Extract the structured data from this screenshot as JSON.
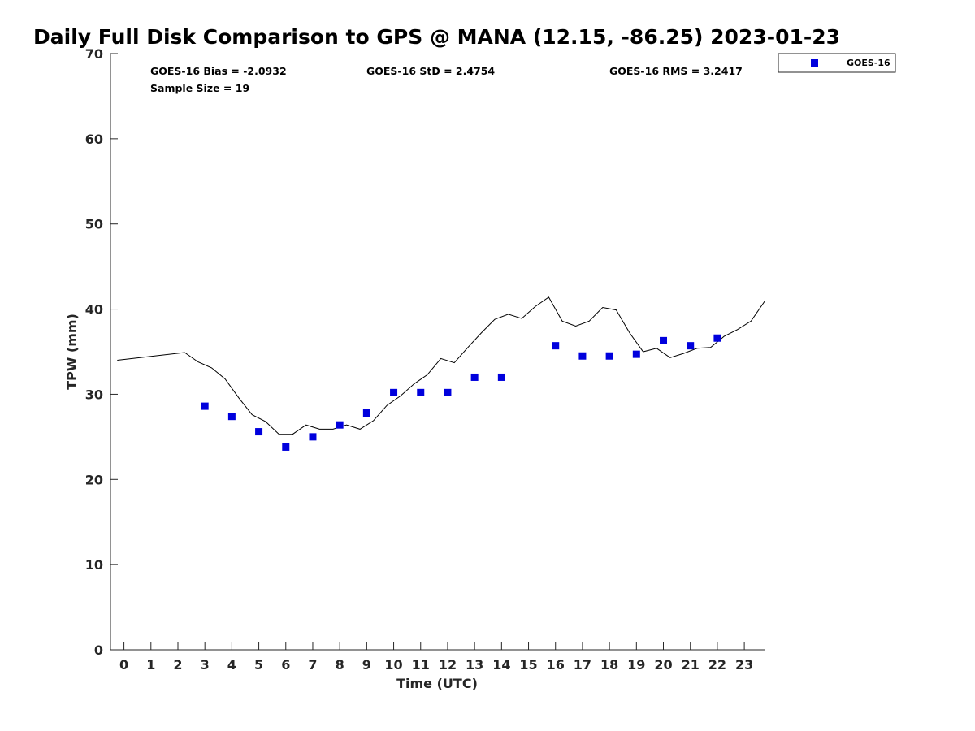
{
  "chart_data": {
    "type": "scatter",
    "title": "Daily Full Disk Comparison to GPS @ MANA (12.15, -86.25) 2023-01-23",
    "xlabel": "Time (UTC)",
    "ylabel": "TPW (mm)",
    "xlim": [
      -0.5,
      23.75
    ],
    "ylim": [
      0,
      70
    ],
    "xticks": [
      0,
      1,
      2,
      3,
      4,
      5,
      6,
      7,
      8,
      9,
      10,
      11,
      12,
      13,
      14,
      15,
      16,
      17,
      18,
      19,
      20,
      21,
      22,
      23
    ],
    "yticks": [
      0,
      10,
      20,
      30,
      40,
      50,
      60,
      70
    ],
    "grid": false,
    "legend": {
      "position": "top-right-outside",
      "entries": [
        "GOES-16"
      ]
    },
    "stats": {
      "bias": "GOES-16 Bias = -2.0932",
      "std": "GOES-16 StD = 2.4754",
      "rms": "GOES-16 RMS = 3.2417",
      "sample_size": "Sample Size = 19"
    },
    "series": [
      {
        "name": "GOES-16",
        "kind": "markers",
        "marker": "square",
        "color": "#0000dd",
        "x": [
          3,
          4,
          5,
          6,
          7,
          8,
          9,
          10,
          11,
          12,
          13,
          14,
          16,
          17,
          18,
          19,
          20,
          21,
          22
        ],
        "y": [
          28.6,
          27.4,
          25.6,
          23.8,
          25.0,
          26.4,
          27.8,
          30.2,
          30.2,
          30.2,
          32.0,
          32.0,
          35.7,
          34.5,
          34.5,
          34.7,
          36.3,
          35.7,
          36.6
        ]
      },
      {
        "kind": "line",
        "color": "#000000",
        "x": [
          -0.25,
          2.25,
          2.75,
          3.25,
          3.75,
          4.25,
          4.75,
          5.25,
          5.75,
          6.25,
          6.75,
          7.25,
          7.75,
          8.25,
          8.75,
          9.25,
          9.75,
          10.25,
          10.75,
          11.25,
          11.75,
          12.25,
          12.75,
          13.25,
          13.75,
          14.25,
          14.75,
          15.25,
          15.75,
          16.25,
          16.75,
          17.25,
          17.75,
          18.25,
          18.75,
          19.25,
          19.75,
          20.25,
          20.75,
          21.25,
          21.75,
          22.25,
          22.75,
          23.25,
          23.75
        ],
        "y": [
          34.0,
          34.9,
          33.8,
          33.1,
          31.8,
          29.6,
          27.6,
          26.8,
          25.3,
          25.3,
          26.4,
          25.9,
          25.9,
          26.4,
          25.9,
          26.9,
          28.7,
          29.8,
          31.2,
          32.3,
          34.2,
          33.7,
          35.5,
          37.2,
          38.8,
          39.4,
          38.9,
          40.3,
          41.4,
          38.6,
          38.0,
          38.6,
          40.2,
          39.9,
          37.2,
          35.0,
          35.4,
          34.3,
          34.8,
          35.4,
          35.5,
          36.8,
          37.6,
          38.6,
          40.9
        ]
      }
    ]
  }
}
